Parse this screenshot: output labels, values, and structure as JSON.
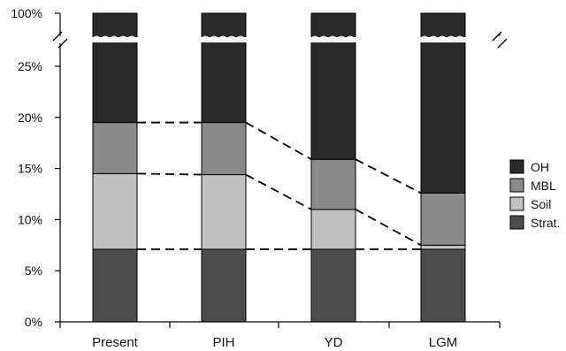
{
  "chart_data": {
    "type": "bar",
    "stacked": true,
    "categories": [
      "Present",
      "PIH",
      "YD",
      "LGM"
    ],
    "series": [
      {
        "name": "Strat.",
        "color": "#4d4d4d",
        "values": [
          7.1,
          7.1,
          7.1,
          7.1
        ]
      },
      {
        "name": "Soil",
        "color": "#c0c0c0",
        "values": [
          7.4,
          7.3,
          3.9,
          0.4
        ]
      },
      {
        "name": "MBL",
        "color": "#8a8a8a",
        "values": [
          5.0,
          5.1,
          4.9,
          5.1
        ]
      },
      {
        "name": "OH",
        "color": "#2a2a2a",
        "values": [
          80.5,
          80.5,
          84.1,
          87.4
        ]
      }
    ],
    "y_axis": {
      "range": [
        0,
        100
      ],
      "tick_labels": [
        "0%",
        "5%",
        "10%",
        "15%",
        "20%",
        "25%",
        "100%"
      ],
      "break": {
        "from": 27,
        "to": 100
      }
    },
    "legend": {
      "placement": "right",
      "entries": [
        "OH",
        "MBL",
        "Soil",
        "Strat."
      ]
    },
    "connector_lines": "dashed lines connect the top of each stacked layer between adjacent bars",
    "grid": false
  }
}
